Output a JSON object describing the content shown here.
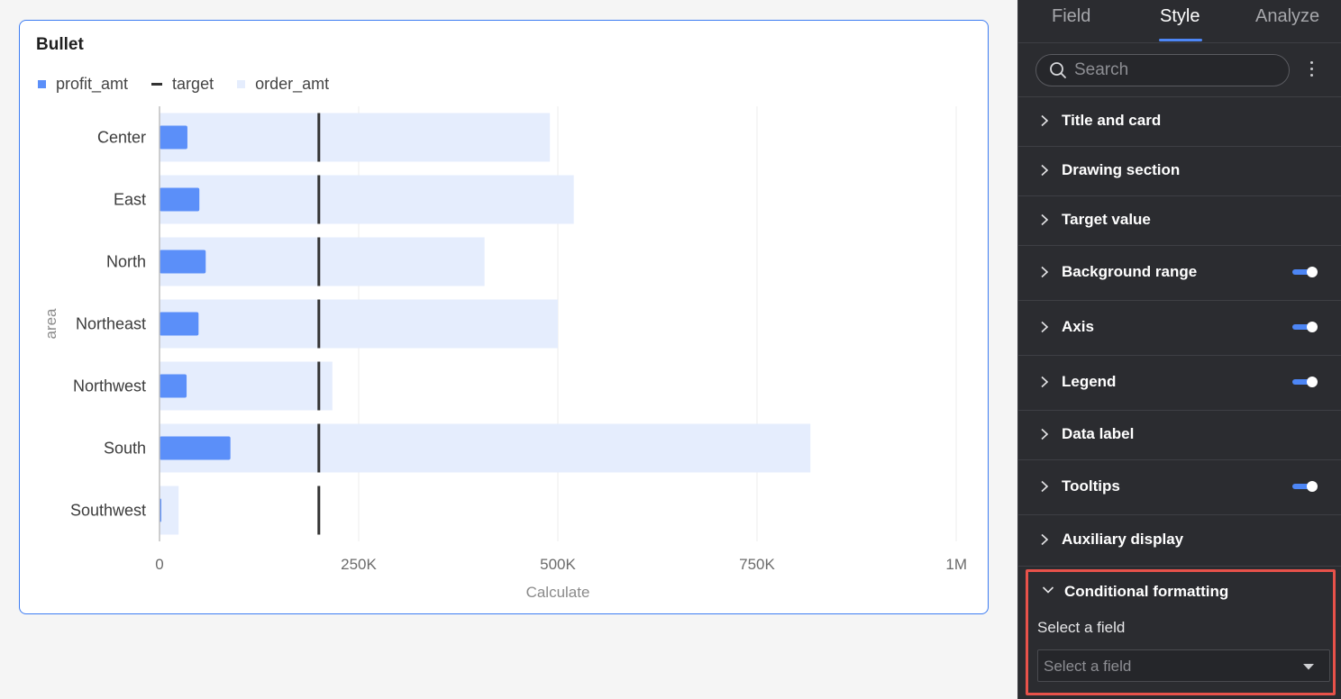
{
  "chart_card": {
    "title": "Bullet",
    "legend": [
      {
        "label": "profit_amt",
        "color": "#5b8ff9",
        "shape": "square"
      },
      {
        "label": "target",
        "color": "#333333",
        "shape": "line"
      },
      {
        "label": "order_amt",
        "color": "#e5edfd",
        "shape": "square"
      }
    ]
  },
  "chart_data": {
    "type": "bar",
    "subtype": "bullet",
    "orientation": "horizontal",
    "title": "Bullet",
    "ylabel": "area",
    "xlabel": "Calculate",
    "xlim": [
      0,
      1000000
    ],
    "x_ticks": [
      "0",
      "250K",
      "500K",
      "750K",
      "1M"
    ],
    "x_tick_values": [
      0,
      250000,
      500000,
      750000,
      1000000
    ],
    "categories": [
      "Center",
      "East",
      "North",
      "Northeast",
      "Northwest",
      "South",
      "Southwest"
    ],
    "series": [
      {
        "name": "order_amt",
        "values": [
          490000,
          520000,
          408000,
          500000,
          217000,
          817000,
          24000
        ],
        "color": "#e5edfd"
      },
      {
        "name": "profit_amt",
        "values": [
          35000,
          50000,
          58000,
          49000,
          34000,
          89000,
          2000
        ],
        "color": "#5b8ff9"
      },
      {
        "name": "target",
        "values": [
          200000,
          200000,
          200000,
          200000,
          200000,
          200000,
          200000
        ],
        "color": "#333333"
      }
    ],
    "grid": true,
    "legend_position": "top-left"
  },
  "panel": {
    "tabs": [
      {
        "label": "Field",
        "active": false
      },
      {
        "label": "Style",
        "active": true
      },
      {
        "label": "Analyze",
        "active": false
      }
    ],
    "search_placeholder": "Search",
    "sections": [
      {
        "label": "Title and card",
        "toggle": false
      },
      {
        "label": "Drawing section",
        "toggle": false
      },
      {
        "label": "Target value",
        "toggle": false
      },
      {
        "label": "Background range",
        "toggle": true
      },
      {
        "label": "Axis",
        "toggle": true
      },
      {
        "label": "Legend",
        "toggle": true
      },
      {
        "label": "Data label",
        "toggle": false
      },
      {
        "label": "Tooltips",
        "toggle": true
      },
      {
        "label": "Auxiliary display",
        "toggle": false
      }
    ],
    "conditional_formatting": {
      "title": "Conditional formatting",
      "expanded": true,
      "select_label": "Select a field",
      "select_placeholder": "Select a field"
    }
  }
}
